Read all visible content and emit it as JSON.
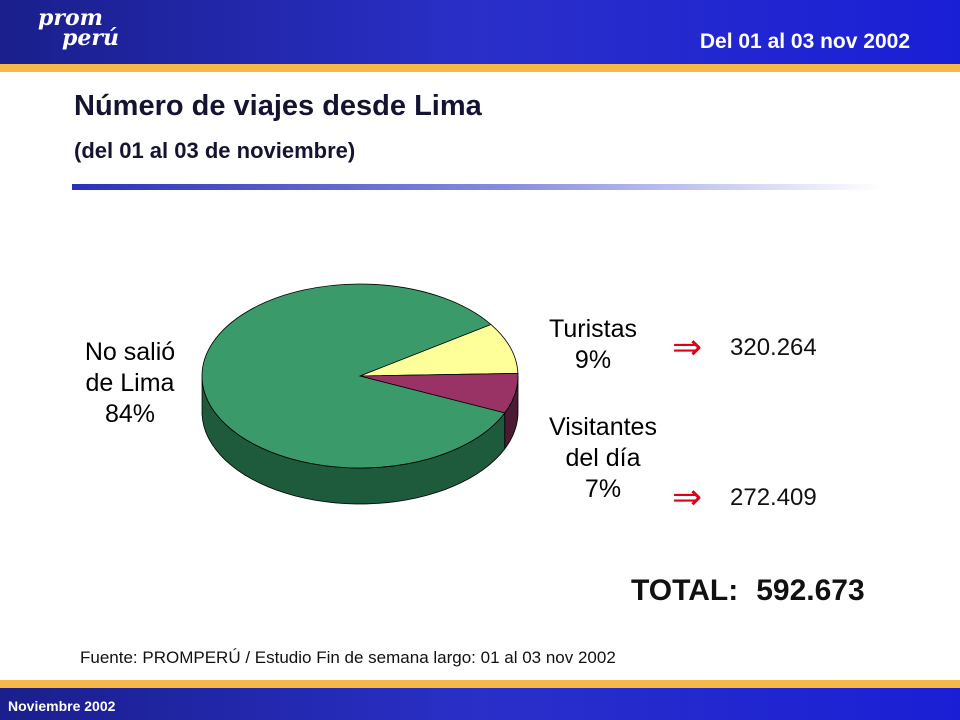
{
  "header": {
    "logo_line1": "prom",
    "logo_line2": "perú",
    "date_range": "Del 01 al 03 nov 2002"
  },
  "title": "Número de viajes desde Lima",
  "subtitle": "(del 01 al 03 de noviembre)",
  "colors": {
    "header_blue": "#2a2fc9",
    "stripe": "#f5b94a",
    "arrow": "#e0001a"
  },
  "chart_data": {
    "type": "pie",
    "slices": [
      {
        "label_lines": [
          "No salió",
          "de Lima",
          "84%"
        ],
        "percent": 84,
        "color": "#3a9a6a",
        "side": "#1e5a3c"
      },
      {
        "label_lines": [
          "Turistas",
          "9%"
        ],
        "percent": 9,
        "color": "#ffff99",
        "side": "#a0a060"
      },
      {
        "label_lines": [
          "Visitantes",
          "del día",
          "7%"
        ],
        "percent": 7,
        "color": "#993366",
        "side": "#4d1a33"
      }
    ]
  },
  "values": {
    "arrow_symbol": "⇒",
    "turistas": "320.264",
    "visitantes": "272.409"
  },
  "total": {
    "label": "TOTAL:",
    "value": "592.673"
  },
  "source": "Fuente: PROMPERÚ / Estudio Fin de semana largo: 01 al 03 nov 2002",
  "footer": {
    "date": "Noviembre 2002"
  }
}
